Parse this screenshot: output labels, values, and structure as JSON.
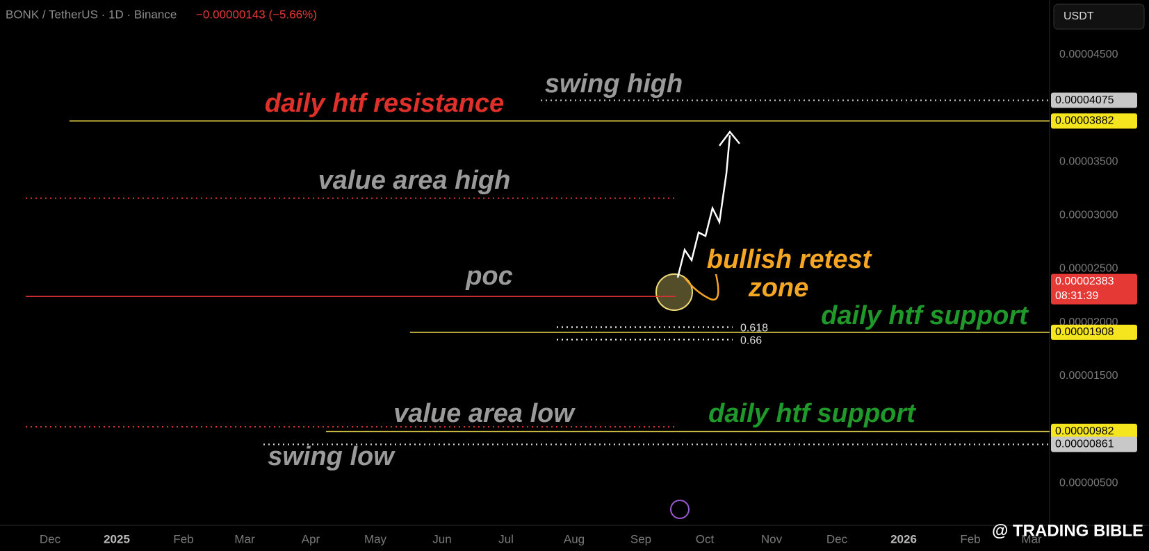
{
  "header": {
    "symbol": "BONK / TetherUS · 1D · Binance",
    "change": "−0.00000143 (−5.66%)",
    "currency": "USDT"
  },
  "price_axis": {
    "ylim": [
      1.05e-06,
      5.012e-05
    ],
    "ticks": [
      {
        "value": 4.5e-05,
        "label": "0.00004500"
      },
      {
        "value": 3.5e-05,
        "label": "0.00003500"
      },
      {
        "value": 3e-05,
        "label": "0.00003000"
      },
      {
        "value": 2.5e-05,
        "label": "0.00002500"
      },
      {
        "value": 2e-05,
        "label": "0.00002000"
      },
      {
        "value": 1.5e-05,
        "label": "0.00001500"
      },
      {
        "value": 5e-06,
        "label": "0.00000500"
      }
    ]
  },
  "time_axis": {
    "labels": [
      "Dec",
      "2025",
      "Feb",
      "Mar",
      "Apr",
      "May",
      "Jun",
      "Jul",
      "Aug",
      "Sep",
      "Oct",
      "Nov",
      "Dec",
      "2026",
      "Feb",
      "Mar"
    ]
  },
  "levels": [
    {
      "value": 4.075e-05,
      "color": "#d0d0d0",
      "style": "dotted"
    },
    {
      "value": 3.882e-05,
      "color": "#e8d84a",
      "style": "solid"
    },
    {
      "value": 3.16e-05,
      "color": "#d93030",
      "style": "dotted"
    },
    {
      "value": 2.243e-05,
      "color": "#d93030",
      "style": "solid"
    },
    {
      "value": 1.956e-05,
      "color": "#ffffff",
      "style": "dotted",
      "label": "0.618"
    },
    {
      "value": 1.84e-05,
      "color": "#ffffff",
      "style": "dotted",
      "label": "0.66"
    },
    {
      "value": 1.908e-05,
      "color": "#e8d84a",
      "style": "solid"
    },
    {
      "value": 1.025e-05,
      "color": "#d93030",
      "style": "dotted"
    },
    {
      "value": 9.82e-06,
      "color": "#e8d84a",
      "style": "solid"
    },
    {
      "value": 8.61e-06,
      "color": "#d0d0d0",
      "style": "dotted"
    }
  ],
  "price_tags": [
    {
      "value": 4.075e-05,
      "label": "0.00004075",
      "color": "#c8c8c8"
    },
    {
      "value": 3.882e-05,
      "label": "0.00003882",
      "color": "#f5e51e"
    },
    {
      "value": 2.383e-05,
      "label": "0.00002383",
      "color": "#e53935",
      "countdown": "08:31:39"
    },
    {
      "value": 1.908e-05,
      "label": "0.00001908",
      "color": "#f5e51e"
    },
    {
      "value": 9.82e-06,
      "label": "0.00000982",
      "color": "#f5e51e"
    },
    {
      "value": 8.61e-06,
      "label": "0.00000861",
      "color": "#c8c8c8"
    }
  ],
  "annotations": [
    {
      "text": "swing high",
      "color": "#9a9a9a"
    },
    {
      "text": "daily htf resistance",
      "color": "#e0302a"
    },
    {
      "text": "value area high",
      "color": "#9a9a9a"
    },
    {
      "text": "poc",
      "color": "#9a9a9a"
    },
    {
      "text": "bullish retest",
      "color": "#f5a623"
    },
    {
      "text": "zone",
      "color": "#f5a623"
    },
    {
      "text": "daily htf support",
      "color": "#1f9a2a"
    },
    {
      "text": "value area low",
      "color": "#9a9a9a"
    },
    {
      "text": "daily htf support",
      "color": "#1f9a2a"
    },
    {
      "text": "swing low",
      "color": "#9a9a9a"
    }
  ],
  "watermark": "@ TRADING BIBLE"
}
